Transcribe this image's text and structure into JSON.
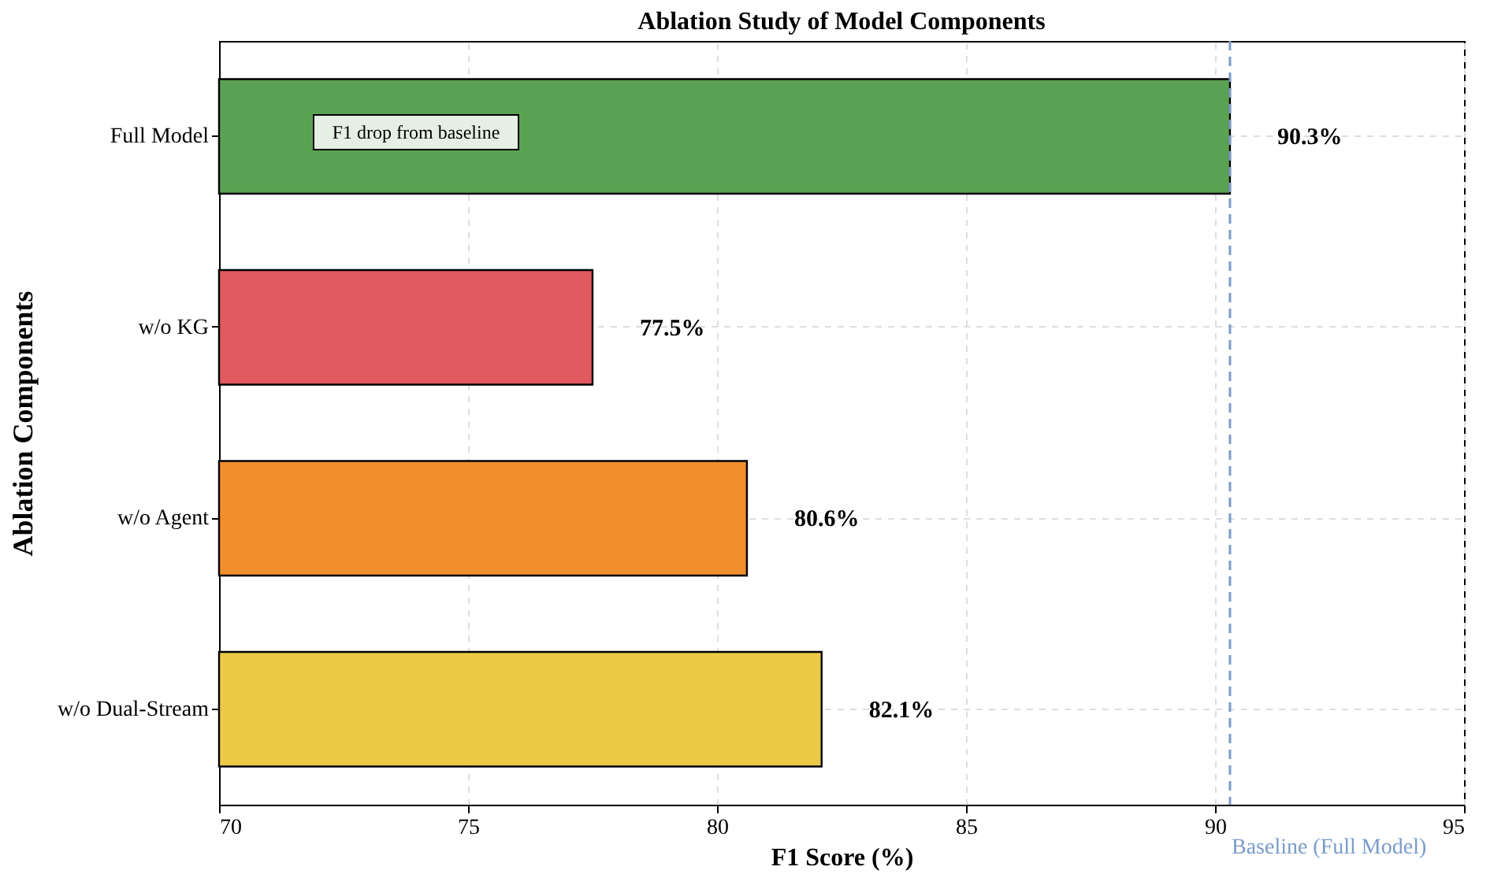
{
  "chart_data": {
    "type": "bar",
    "orientation": "horizontal",
    "title": "Ablation Study of Model Components",
    "xlabel": "F1 Score (%)",
    "ylabel": "Ablation Components",
    "categories": [
      "Full Model",
      "w/o KG",
      "w/o Agent",
      "w/o Dual-Stream"
    ],
    "values": [
      90.3,
      77.5,
      80.6,
      82.1
    ],
    "colors": [
      "#5ba153",
      "#e05a5f",
      "#f28e2b",
      "#edc948"
    ],
    "value_labels": [
      "90.3%",
      "77.5%",
      "80.6%",
      "82.1%"
    ],
    "xlim": [
      70,
      95
    ],
    "xticks": [
      70,
      75,
      80,
      85,
      90,
      95
    ],
    "grid": true,
    "ref_lines": [
      {
        "axis": "x",
        "value": 90.3,
        "label": "Baseline (Full Model)",
        "color": "#7b9cc9",
        "line_style": "dashed"
      }
    ],
    "annotations": [
      "F1 drop from baseline"
    ]
  }
}
